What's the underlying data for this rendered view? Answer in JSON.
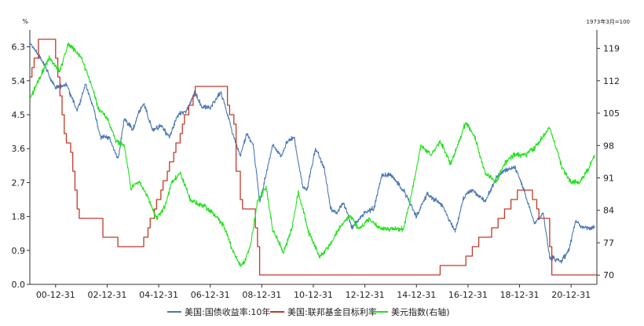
{
  "chart_data": {
    "type": "line",
    "title": "",
    "left_axis": {
      "unit": "%",
      "ylim": [
        0.0,
        6.75
      ],
      "ticks": [
        "0.0",
        "0.9",
        "1.8",
        "2.7",
        "3.6",
        "4.5",
        "5.4",
        "6.3"
      ]
    },
    "right_axis": {
      "unit": "1973年3月=100",
      "ylim": [
        68,
        123
      ],
      "ticks": [
        "70",
        "77",
        "84",
        "91",
        "98",
        "105",
        "112",
        "119"
      ]
    },
    "x_axis": {
      "range": [
        "2000-01-01",
        "2021-12-31"
      ],
      "tick_labels": [
        "00-12-31",
        "02-12-31",
        "04-12-31",
        "06-12-31",
        "08-12-31",
        "10-12-31",
        "12-12-31",
        "14-12-31",
        "16-12-31",
        "18-12-31",
        "20-12-31"
      ]
    },
    "grid": false,
    "legend_position": "bottom",
    "series": [
      {
        "name": "美国:国债收益率:10年",
        "axis": "left",
        "color": "#4a78b4",
        "x": [
          "2000-01",
          "2000-06",
          "2001-01",
          "2001-06",
          "2001-11",
          "2002-03",
          "2002-06",
          "2002-10",
          "2003-02",
          "2003-06",
          "2003-09",
          "2004-01",
          "2004-04",
          "2004-06",
          "2004-10",
          "2005-02",
          "2005-06",
          "2005-10",
          "2006-02",
          "2006-06",
          "2006-09",
          "2007-01",
          "2007-06",
          "2007-09",
          "2008-01",
          "2008-03",
          "2008-06",
          "2008-09",
          "2008-12",
          "2009-01",
          "2009-06",
          "2009-10",
          "2010-01",
          "2010-04",
          "2010-08",
          "2010-10",
          "2011-02",
          "2011-06",
          "2011-09",
          "2011-12",
          "2012-03",
          "2012-07",
          "2012-10",
          "2013-01",
          "2013-05",
          "2013-09",
          "2014-01",
          "2014-04",
          "2014-08",
          "2015-01",
          "2015-06",
          "2016-01",
          "2016-07",
          "2016-11",
          "2017-03",
          "2017-09",
          "2018-02",
          "2018-05",
          "2018-11",
          "2019-03",
          "2019-08",
          "2019-12",
          "2020-03",
          "2020-05",
          "2020-08",
          "2020-12",
          "2021-03",
          "2021-06",
          "2021-12"
        ],
        "values": [
          6.4,
          6.0,
          5.2,
          5.3,
          4.6,
          5.3,
          4.8,
          3.9,
          3.9,
          3.3,
          4.4,
          4.1,
          4.6,
          4.8,
          4.1,
          4.2,
          3.9,
          4.5,
          4.6,
          5.1,
          4.7,
          4.7,
          5.1,
          4.5,
          3.7,
          3.4,
          4.0,
          3.7,
          2.2,
          2.4,
          3.7,
          3.4,
          3.8,
          3.9,
          2.6,
          2.5,
          3.6,
          3.1,
          2.0,
          1.9,
          2.2,
          1.5,
          1.7,
          1.9,
          2.0,
          2.9,
          2.9,
          2.7,
          2.4,
          1.8,
          2.4,
          2.1,
          1.4,
          2.3,
          2.5,
          2.2,
          2.8,
          3.0,
          3.1,
          2.5,
          1.6,
          1.9,
          0.7,
          0.7,
          0.6,
          0.9,
          1.7,
          1.5,
          1.5
        ]
      },
      {
        "name": "美国:联邦基金目标利率",
        "axis": "left",
        "color": "#c0392b",
        "step": true,
        "x": [
          "2000-01",
          "2000-02",
          "2000-03",
          "2000-05",
          "2001-01",
          "2001-02",
          "2001-03",
          "2001-04",
          "2001-05",
          "2001-06",
          "2001-08",
          "2001-09",
          "2001-10",
          "2001-11",
          "2001-12",
          "2002-11",
          "2003-06",
          "2004-06",
          "2004-08",
          "2004-09",
          "2004-11",
          "2004-12",
          "2005-02",
          "2005-03",
          "2005-05",
          "2005-06",
          "2005-08",
          "2005-09",
          "2005-11",
          "2005-12",
          "2006-01",
          "2006-03",
          "2006-05",
          "2006-06",
          "2007-09",
          "2007-10",
          "2007-12",
          "2008-01",
          "2008-01",
          "2008-03",
          "2008-04",
          "2008-10",
          "2008-11",
          "2008-12",
          "2015-12",
          "2016-12",
          "2017-03",
          "2017-06",
          "2017-12",
          "2018-03",
          "2018-06",
          "2018-09",
          "2018-12",
          "2019-07",
          "2019-09",
          "2019-10",
          "2020-03",
          "2020-04",
          "2021-12"
        ],
        "values": [
          5.5,
          5.75,
          6.0,
          6.5,
          6.0,
          5.5,
          5.0,
          4.5,
          4.0,
          3.75,
          3.5,
          3.0,
          2.5,
          2.0,
          1.75,
          1.25,
          1.0,
          1.25,
          1.5,
          1.75,
          2.0,
          2.25,
          2.5,
          2.75,
          3.0,
          3.25,
          3.5,
          3.75,
          4.0,
          4.25,
          4.5,
          4.75,
          5.0,
          5.25,
          4.75,
          4.5,
          4.25,
          3.5,
          3.0,
          2.25,
          2.0,
          1.5,
          1.0,
          0.25,
          0.5,
          0.75,
          1.0,
          1.25,
          1.5,
          1.75,
          2.0,
          2.25,
          2.5,
          2.25,
          2.0,
          1.75,
          1.0,
          0.25,
          0.25
        ]
      },
      {
        "name": "美元指数(右轴)",
        "axis": "right",
        "color": "#22e01c",
        "x": [
          "2000-01",
          "2000-06",
          "2000-10",
          "2001-03",
          "2001-07",
          "2002-01",
          "2002-05",
          "2002-09",
          "2003-01",
          "2003-05",
          "2003-09",
          "2003-12",
          "2004-04",
          "2004-08",
          "2004-12",
          "2005-04",
          "2005-07",
          "2005-11",
          "2006-04",
          "2006-10",
          "2007-03",
          "2007-07",
          "2007-11",
          "2008-03",
          "2008-05",
          "2008-08",
          "2008-11",
          "2009-03",
          "2009-06",
          "2009-11",
          "2010-03",
          "2010-06",
          "2010-11",
          "2011-04",
          "2011-08",
          "2012-01",
          "2012-06",
          "2012-10",
          "2013-03",
          "2013-09",
          "2014-03",
          "2014-07",
          "2014-10",
          "2015-01",
          "2015-03",
          "2015-08",
          "2015-12",
          "2016-05",
          "2016-12",
          "2017-04",
          "2017-09",
          "2018-02",
          "2018-06",
          "2018-10",
          "2019-04",
          "2019-09",
          "2020-03",
          "2020-05",
          "2020-09",
          "2021-01",
          "2021-05",
          "2021-09",
          "2021-12"
        ],
        "values": [
          108,
          113,
          117,
          114,
          120,
          117,
          112,
          106,
          104,
          99,
          98,
          89,
          90,
          87,
          82,
          85,
          90,
          92,
          86,
          85,
          83,
          81,
          76,
          72,
          73,
          77,
          86,
          89,
          80,
          75,
          80,
          88,
          79,
          74,
          76,
          80,
          83,
          80,
          82,
          80,
          80,
          80,
          86,
          93,
          98,
          96,
          99,
          94,
          103,
          100,
          92,
          90,
          94,
          96,
          96,
          98,
          102,
          99,
          93,
          90,
          90,
          93,
          96
        ]
      }
    ]
  }
}
